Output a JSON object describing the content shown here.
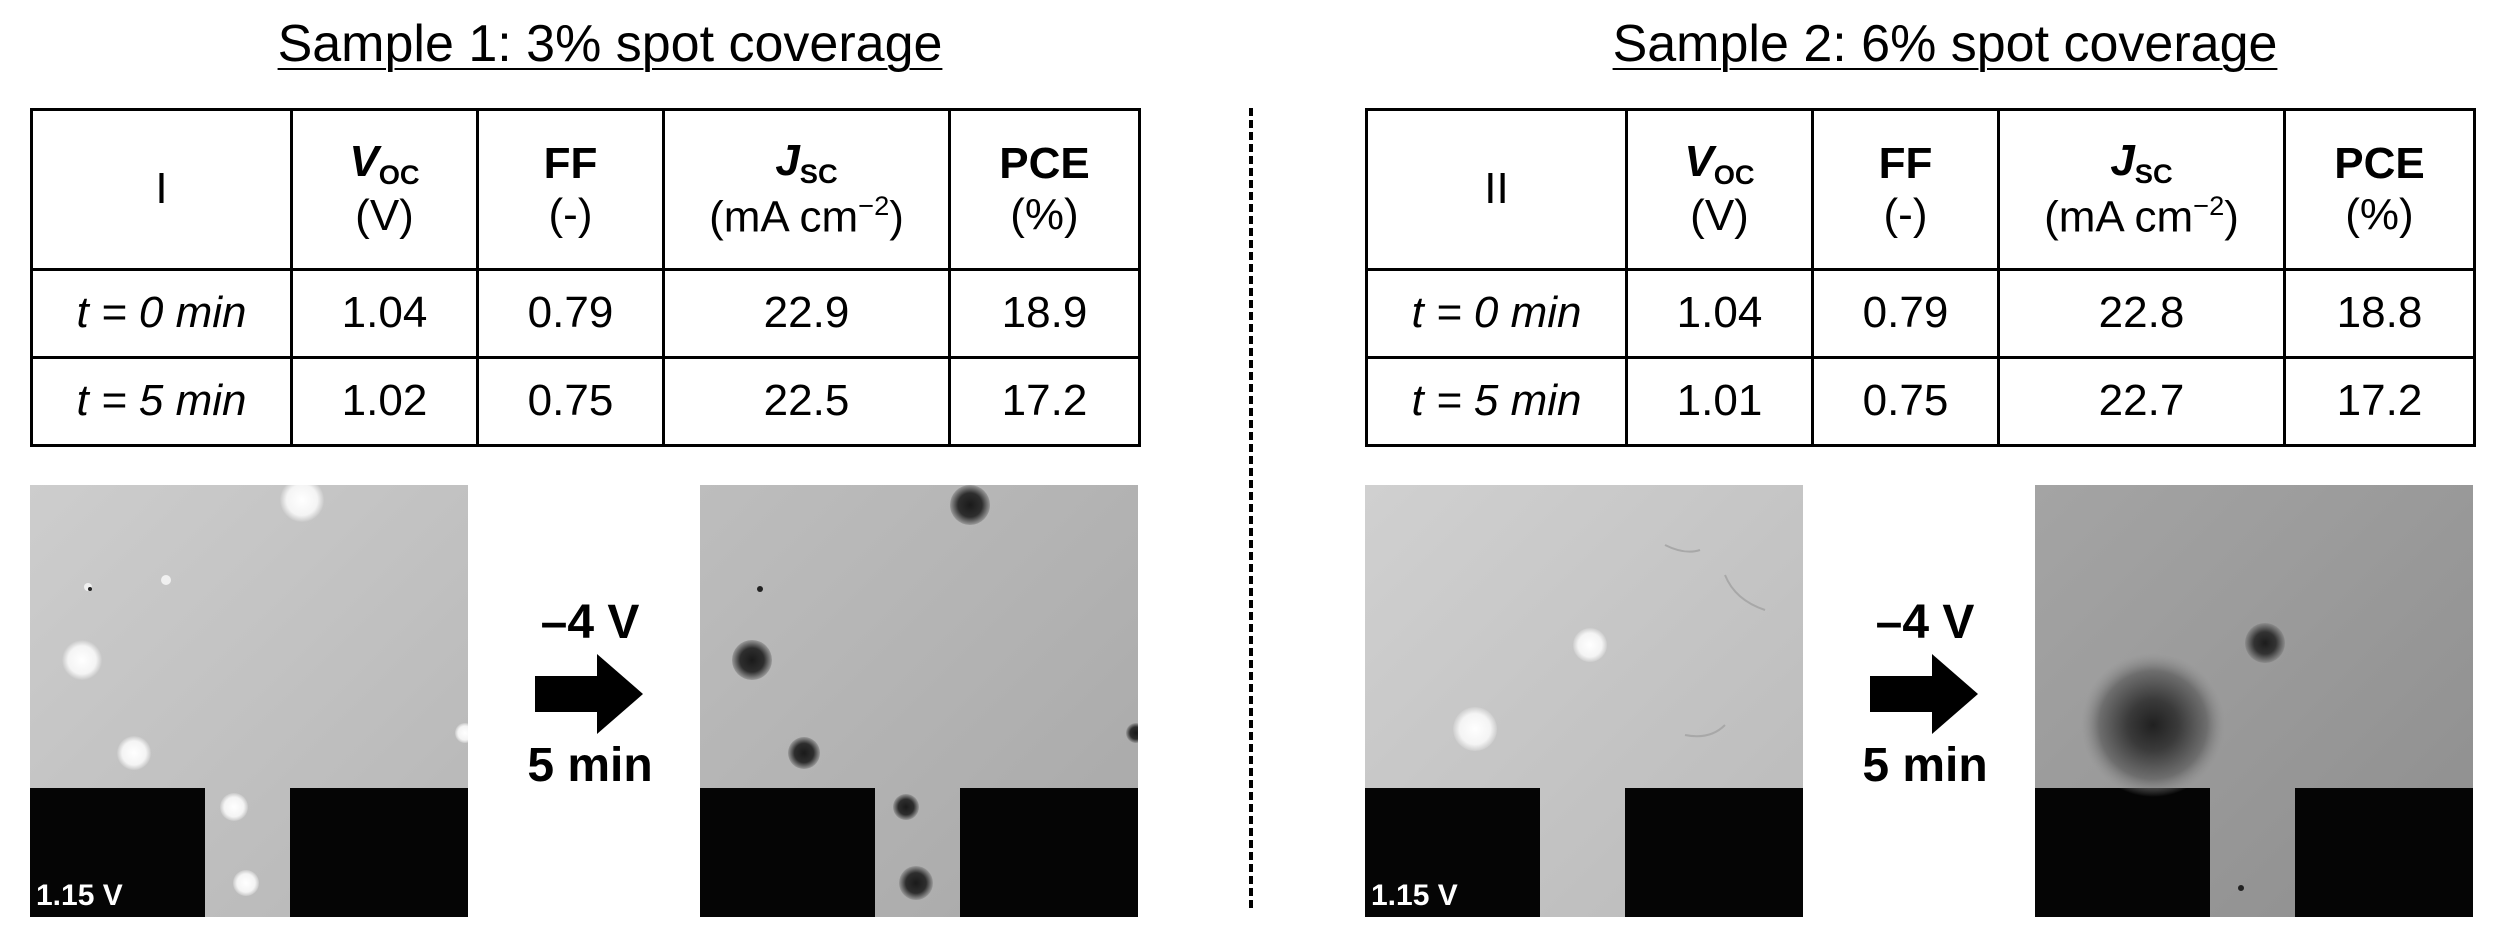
{
  "panels": [
    {
      "title": "Sample 1: 3% spot coverage",
      "label": "I",
      "headers": [
        {
          "sym": "V",
          "sub": "OC",
          "unit": "(V)"
        },
        {
          "sym": "FF",
          "sub": "",
          "unit": "(-)"
        },
        {
          "sym": "J",
          "sub": "SC",
          "unit_pre": "(mA cm",
          "unit_sup": "−2",
          "unit_post": ")"
        },
        {
          "sym": "PCE",
          "sub": "",
          "unit": "(%)"
        }
      ],
      "rows": [
        {
          "label": "t = 0 min",
          "voc": "1.04",
          "ff": "0.79",
          "jsc": "22.9",
          "pce": "18.9"
        },
        {
          "label": "t = 5 min",
          "voc": "1.02",
          "ff": "0.75",
          "jsc": "22.5",
          "pce": "17.2"
        }
      ],
      "before_image_label": "1.15 V",
      "arrow_top": "–4 V",
      "arrow_bottom": "5 min"
    },
    {
      "title": "Sample 2: 6% spot coverage",
      "label": "II",
      "headers": [
        {
          "sym": "V",
          "sub": "OC",
          "unit": "(V)"
        },
        {
          "sym": "FF",
          "sub": "",
          "unit": "(-)"
        },
        {
          "sym": "J",
          "sub": "SC",
          "unit_pre": "(mA cm",
          "unit_sup": "−2",
          "unit_post": ")"
        },
        {
          "sym": "PCE",
          "sub": "",
          "unit": "(%)"
        }
      ],
      "rows": [
        {
          "label": "t = 0 min",
          "voc": "1.04",
          "ff": "0.79",
          "jsc": "22.8",
          "pce": "18.8"
        },
        {
          "label": "t = 5 min",
          "voc": "1.01",
          "ff": "0.75",
          "jsc": "22.7",
          "pce": "17.2"
        }
      ],
      "before_image_label": "1.15 V",
      "arrow_top": "–4 V",
      "arrow_bottom": "5 min"
    }
  ]
}
